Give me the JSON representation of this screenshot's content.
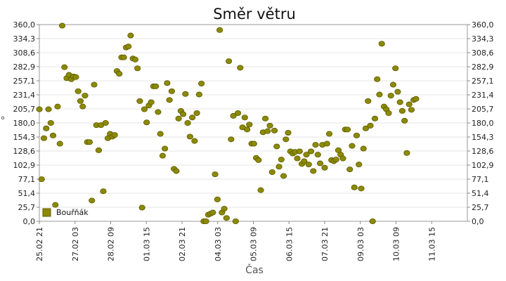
{
  "chart_data": {
    "type": "scatter",
    "title": "Směr větru",
    "xlabel": "Čas",
    "ylabel": "°",
    "ylim": [
      0,
      360
    ],
    "yticks": [
      "0,0",
      "25,7",
      "51,4",
      "77,1",
      "102,9",
      "128,6",
      "154,3",
      "180,0",
      "205,7",
      "231,4",
      "257,1",
      "282,9",
      "308,6",
      "334,3",
      "360,0"
    ],
    "xlim": [
      0,
      15.0
    ],
    "xticks": [
      {
        "label": "25.02 21",
        "x": 0.0
      },
      {
        "label": "27.02 03",
        "x": 1.25
      },
      {
        "label": "28.02 09",
        "x": 2.5
      },
      {
        "label": "01.03 15",
        "x": 3.75
      },
      {
        "label": "02.03 21",
        "x": 5.0
      },
      {
        "label": "04.03 03",
        "x": 6.25
      },
      {
        "label": "05.03 09",
        "x": 7.5
      },
      {
        "label": "06.03 15",
        "x": 8.75
      },
      {
        "label": "07.03 21",
        "x": 10.0
      },
      {
        "label": "09.03 03",
        "x": 11.25
      },
      {
        "label": "10.03 09",
        "x": 12.5
      },
      {
        "label": "11.03 15",
        "x": 13.75
      }
    ],
    "grid": true,
    "legend_position": "bottom-left",
    "series": [
      {
        "name": "Bouřňák",
        "color": "#8c8a00",
        "points": [
          [
            0.0,
            205
          ],
          [
            0.08,
            77
          ],
          [
            0.16,
            152
          ],
          [
            0.24,
            170
          ],
          [
            0.32,
            205
          ],
          [
            0.4,
            180
          ],
          [
            0.48,
            157
          ],
          [
            0.56,
            30
          ],
          [
            0.64,
            210
          ],
          [
            0.72,
            142
          ],
          [
            0.8,
            358
          ],
          [
            0.88,
            282
          ],
          [
            0.96,
            262
          ],
          [
            1.04,
            268
          ],
          [
            1.12,
            260
          ],
          [
            1.2,
            265
          ],
          [
            1.28,
            264
          ],
          [
            1.36,
            238
          ],
          [
            1.44,
            220
          ],
          [
            1.52,
            210
          ],
          [
            1.6,
            230
          ],
          [
            1.68,
            145
          ],
          [
            1.76,
            145
          ],
          [
            1.84,
            38
          ],
          [
            1.92,
            250
          ],
          [
            2.0,
            176
          ],
          [
            2.08,
            130
          ],
          [
            2.16,
            176
          ],
          [
            2.24,
            55
          ],
          [
            2.32,
            180
          ],
          [
            2.4,
            152
          ],
          [
            2.48,
            160
          ],
          [
            2.56,
            155
          ],
          [
            2.64,
            158
          ],
          [
            2.72,
            275
          ],
          [
            2.8,
            270
          ],
          [
            2.88,
            300
          ],
          [
            2.96,
            300
          ],
          [
            3.04,
            318
          ],
          [
            3.12,
            320
          ],
          [
            3.2,
            340
          ],
          [
            3.28,
            298
          ],
          [
            3.36,
            296
          ],
          [
            3.44,
            280
          ],
          [
            3.52,
            220
          ],
          [
            3.6,
            25
          ],
          [
            3.68,
            205
          ],
          [
            3.76,
            181
          ],
          [
            3.84,
            212
          ],
          [
            3.92,
            218
          ],
          [
            4.0,
            247
          ],
          [
            4.08,
            247
          ],
          [
            4.16,
            200
          ],
          [
            4.24,
            160
          ],
          [
            4.32,
            120
          ],
          [
            4.4,
            133
          ],
          [
            4.48,
            253
          ],
          [
            4.56,
            222
          ],
          [
            4.64,
            238
          ],
          [
            4.72,
            96
          ],
          [
            4.8,
            92
          ],
          [
            4.88,
            188
          ],
          [
            4.96,
            202
          ],
          [
            5.04,
            196
          ],
          [
            5.12,
            233
          ],
          [
            5.2,
            180
          ],
          [
            5.28,
            155
          ],
          [
            5.36,
            190
          ],
          [
            5.44,
            147
          ],
          [
            5.52,
            198
          ],
          [
            5.6,
            232
          ],
          [
            5.68,
            252
          ],
          [
            5.76,
            0
          ],
          [
            5.84,
            0
          ],
          [
            5.92,
            12
          ],
          [
            6.0,
            14
          ],
          [
            6.08,
            16
          ],
          [
            6.16,
            86
          ],
          [
            6.24,
            40
          ],
          [
            6.32,
            350
          ],
          [
            6.4,
            16
          ],
          [
            6.48,
            23
          ],
          [
            6.56,
            6
          ],
          [
            6.64,
            293
          ],
          [
            6.72,
            150
          ],
          [
            6.8,
            193
          ],
          [
            6.88,
            0
          ],
          [
            6.96,
            198
          ],
          [
            7.04,
            281
          ],
          [
            7.12,
            172
          ],
          [
            7.2,
            190
          ],
          [
            7.28,
            168
          ],
          [
            7.36,
            177
          ],
          [
            7.44,
            142
          ],
          [
            7.52,
            142
          ],
          [
            7.6,
            116
          ],
          [
            7.68,
            112
          ],
          [
            7.76,
            57
          ],
          [
            7.84,
            163
          ],
          [
            7.92,
            188
          ],
          [
            8.0,
            165
          ],
          [
            8.08,
            175
          ],
          [
            8.16,
            90
          ],
          [
            8.24,
            166
          ],
          [
            8.32,
            137
          ],
          [
            8.4,
            100
          ],
          [
            8.48,
            113
          ],
          [
            8.56,
            83
          ],
          [
            8.64,
            150
          ],
          [
            8.72,
            162
          ],
          [
            8.8,
            128
          ],
          [
            8.88,
            124
          ],
          [
            8.96,
            127
          ],
          [
            9.04,
            115
          ],
          [
            9.12,
            128
          ],
          [
            9.2,
            105
          ],
          [
            9.28,
            110
          ],
          [
            9.36,
            122
          ],
          [
            9.44,
            104
          ],
          [
            9.52,
            128
          ],
          [
            9.6,
            92
          ],
          [
            9.68,
            140
          ],
          [
            9.76,
            122
          ],
          [
            9.84,
            106
          ],
          [
            9.92,
            140
          ],
          [
            10.0,
            98
          ],
          [
            10.08,
            142
          ],
          [
            10.16,
            160
          ],
          [
            10.24,
            112
          ],
          [
            10.32,
            110
          ],
          [
            10.4,
            113
          ],
          [
            10.48,
            130
          ],
          [
            10.56,
            122
          ],
          [
            10.64,
            115
          ],
          [
            10.72,
            168
          ],
          [
            10.8,
            168
          ],
          [
            10.88,
            95
          ],
          [
            10.96,
            138
          ],
          [
            11.04,
            62
          ],
          [
            11.12,
            157
          ],
          [
            11.2,
            104
          ],
          [
            11.28,
            60
          ],
          [
            11.36,
            133
          ],
          [
            11.44,
            170
          ],
          [
            11.52,
            220
          ],
          [
            11.6,
            175
          ],
          [
            11.68,
            0
          ],
          [
            11.76,
            188
          ],
          [
            11.84,
            260
          ],
          [
            11.92,
            232
          ],
          [
            12.0,
            325
          ],
          [
            12.08,
            210
          ],
          [
            12.16,
            205
          ],
          [
            12.24,
            198
          ],
          [
            12.32,
            230
          ],
          [
            12.4,
            250
          ],
          [
            12.48,
            280
          ],
          [
            12.56,
            237
          ],
          [
            12.64,
            218
          ],
          [
            12.72,
            202
          ],
          [
            12.8,
            184
          ],
          [
            12.88,
            125
          ],
          [
            12.96,
            214
          ],
          [
            13.04,
            204
          ],
          [
            13.12,
            222
          ],
          [
            13.2,
            224
          ]
        ]
      }
    ]
  }
}
